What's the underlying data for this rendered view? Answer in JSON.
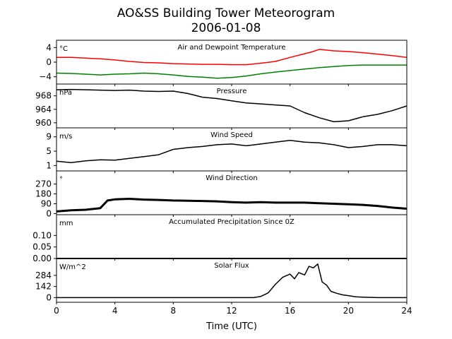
{
  "title_line1": "AO&SS Building Tower Meteorogram",
  "title_line2": "2006-01-08",
  "xlabel": "Time (UTC)",
  "colors": {
    "temperature": "#ff0000",
    "dewpoint": "#008000",
    "other": "#000000"
  },
  "chart_data": [
    {
      "type": "line",
      "title": "Air and Dewpoint Temperature",
      "unit": "°C",
      "xlim": [
        0,
        24
      ],
      "ylim": [
        -6,
        6
      ],
      "yticks": [
        4,
        0,
        -4
      ],
      "x_ticks": [
        0,
        4,
        8,
        12,
        16,
        20,
        24
      ],
      "series": [
        {
          "key": "temperature",
          "x": [
            0,
            1,
            2,
            3,
            4,
            5,
            6,
            7,
            8,
            9,
            10,
            11,
            12,
            13,
            14,
            15,
            16,
            17,
            17.5,
            18,
            19,
            20,
            21,
            22,
            23,
            24
          ],
          "y": [
            1.3,
            1.3,
            1.1,
            0.9,
            0.6,
            0.2,
            -0.1,
            -0.2,
            -0.4,
            -0.5,
            -0.6,
            -0.6,
            -0.7,
            -0.7,
            -0.3,
            0.2,
            1.3,
            2.3,
            2.8,
            3.5,
            3.1,
            2.9,
            2.6,
            2.2,
            1.8,
            1.3
          ]
        },
        {
          "key": "dewpoint",
          "x": [
            0,
            1,
            2,
            3,
            4,
            5,
            6,
            7,
            8,
            9,
            10,
            11,
            12,
            13,
            14,
            15,
            16,
            17,
            18,
            19,
            20,
            21,
            22,
            23,
            24
          ],
          "y": [
            -3.0,
            -3.1,
            -3.3,
            -3.5,
            -3.3,
            -3.2,
            -3.0,
            -3.2,
            -3.5,
            -3.9,
            -4.1,
            -4.4,
            -4.2,
            -3.8,
            -3.2,
            -2.7,
            -2.3,
            -1.9,
            -1.5,
            -1.2,
            -0.9,
            -0.8,
            -0.8,
            -0.8,
            -0.8
          ]
        }
      ]
    },
    {
      "type": "line",
      "title": "Pressure",
      "unit": "hPa",
      "xlim": [
        0,
        24
      ],
      "ylim": [
        958.5,
        971.5
      ],
      "yticks": [
        968,
        964,
        960
      ],
      "series": [
        {
          "key": "other",
          "x": [
            0,
            1,
            2,
            3,
            4,
            5,
            6,
            7,
            8,
            9,
            10,
            11,
            12,
            13,
            14,
            15,
            16,
            17,
            18,
            19,
            20,
            21,
            22,
            23,
            24
          ],
          "y": [
            969.8,
            969.9,
            969.8,
            969.7,
            969.6,
            969.7,
            969.4,
            969.3,
            969.4,
            968.7,
            967.6,
            967.2,
            966.5,
            965.9,
            965.6,
            965.3,
            965.0,
            963.0,
            961.5,
            960.3,
            960.6,
            961.8,
            962.5,
            963.6,
            965.0
          ]
        }
      ]
    },
    {
      "type": "line",
      "title": "Wind Speed",
      "unit": "m/s",
      "xlim": [
        0,
        24
      ],
      "ylim": [
        -0.5,
        11.5
      ],
      "yticks": [
        9,
        5,
        1
      ],
      "series": [
        {
          "key": "other",
          "x": [
            0,
            1,
            2,
            3,
            4,
            5,
            6,
            7,
            8,
            9,
            10,
            11,
            12,
            13,
            14,
            15,
            16,
            17,
            18,
            19,
            20,
            21,
            22,
            23,
            24
          ],
          "y": [
            2.2,
            1.8,
            2.3,
            2.6,
            2.5,
            3.0,
            3.5,
            4.0,
            5.5,
            6.0,
            6.3,
            6.8,
            7.0,
            6.5,
            7.0,
            7.5,
            8.0,
            7.5,
            7.3,
            6.8,
            6.0,
            6.3,
            6.8,
            6.8,
            6.5
          ]
        }
      ]
    },
    {
      "type": "scatter",
      "title": "Wind Direction",
      "unit": "°",
      "xlim": [
        0,
        24
      ],
      "ylim": [
        -10,
        390
      ],
      "yticks": [
        270,
        180,
        90,
        0
      ],
      "series": [
        {
          "key": "other",
          "x": [
            0,
            1,
            2,
            3,
            3.5,
            4,
            5,
            6,
            7,
            8,
            9,
            10,
            11,
            12,
            13,
            14,
            15,
            16,
            17,
            18,
            19,
            20,
            21,
            22,
            23,
            24
          ],
          "y": [
            20,
            30,
            35,
            50,
            120,
            130,
            135,
            128,
            125,
            120,
            118,
            115,
            112,
            105,
            100,
            105,
            100,
            100,
            100,
            95,
            90,
            85,
            80,
            70,
            55,
            45
          ]
        }
      ]
    },
    {
      "type": "line",
      "title": "Accumulated Precipitation Since 0Z",
      "unit": "mm",
      "xlim": [
        0,
        24
      ],
      "ylim": [
        0,
        0.19
      ],
      "yticks": [
        0.1,
        0.05,
        0.0
      ],
      "ytick_labels": [
        "0.10",
        "0.05",
        "0.00"
      ],
      "series": [
        {
          "key": "other",
          "x": [
            0,
            24
          ],
          "y": [
            0,
            0
          ]
        }
      ]
    },
    {
      "type": "line",
      "title": "Solar Flux",
      "unit": "W/m^2",
      "xlim": [
        0,
        24
      ],
      "ylim": [
        -60,
        500
      ],
      "yticks": [
        284,
        142,
        0
      ],
      "series": [
        {
          "key": "other",
          "x": [
            0,
            13.5,
            14,
            14.5,
            15,
            15.5,
            16,
            16.3,
            16.6,
            17,
            17.3,
            17.6,
            17.9,
            18.2,
            18.5,
            18.8,
            19.2,
            19.6,
            20,
            20.5,
            21,
            22,
            23,
            24
          ],
          "y": [
            0,
            0,
            15,
            60,
            170,
            260,
            300,
            240,
            320,
            290,
            400,
            380,
            430,
            200,
            160,
            80,
            55,
            35,
            25,
            10,
            5,
            0,
            0,
            0
          ]
        }
      ]
    }
  ]
}
